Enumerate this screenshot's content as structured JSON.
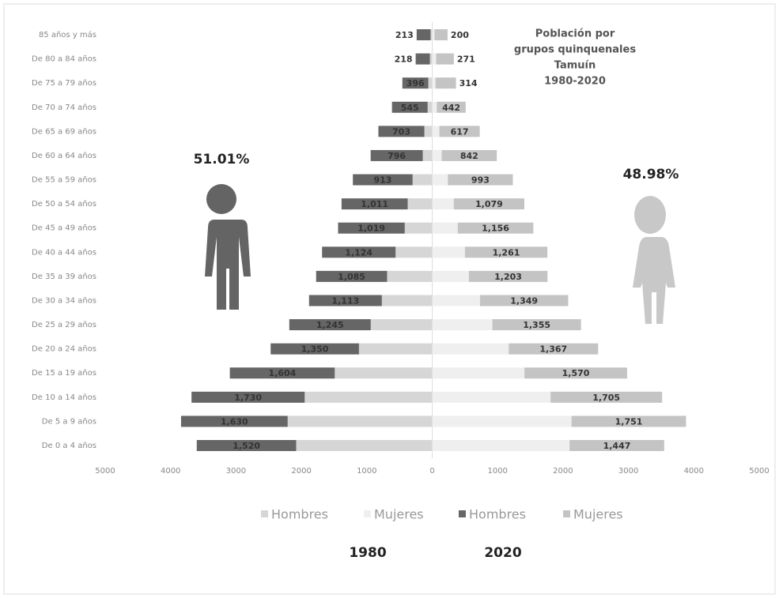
{
  "chart_data": {
    "type": "pyramid",
    "title_lines": [
      "Población por",
      "grupos quinquenales",
      "Tamuín",
      "1980-2020"
    ],
    "categories": [
      "De 0 a 4 años",
      "De 5 a 9 años",
      "De 10 a 14 años",
      "De 15 a 19 años",
      "De 20 a 24 años",
      "De 25 a 29 años",
      "De 30 a 34 años",
      "De 35 a 39 años",
      "De 40 a 44 años",
      "De 45 a 49 años",
      "De 50 a 54 años",
      "De 55 a 59 años",
      "De 60 a 64 años",
      "De 65 a 69 años",
      "De 70 a 74 años",
      "De 75 a 79 años",
      "De 80 a 84 años",
      "85 años y más"
    ],
    "series": [
      {
        "name": "Hombres",
        "color": "#d6d6d6",
        "values": [
          -2080,
          -2210,
          -1950,
          -1490,
          -1120,
          -940,
          -770,
          -690,
          -560,
          -420,
          -375,
          -300,
          -145,
          -120,
          -70,
          -60,
          -35,
          -25
        ]
      },
      {
        "name": "Mujeres",
        "color": "#efefef",
        "values": [
          2100,
          2130,
          1810,
          1410,
          1170,
          920,
          730,
          560,
          500,
          390,
          330,
          240,
          145,
          110,
          70,
          50,
          60,
          35
        ]
      },
      {
        "name": "Hombres",
        "color": "#666666",
        "values": [
          -1520,
          -1630,
          -1730,
          -1604,
          -1350,
          -1245,
          -1113,
          -1085,
          -1124,
          -1019,
          -1011,
          -913,
          -796,
          -703,
          -545,
          -396,
          -218,
          -213
        ],
        "value_labels": [
          "1,520",
          "1,630",
          "1,730",
          "1,604",
          "1,350",
          "1,245",
          "1,113",
          "1,085",
          "1,124",
          "1,019",
          "1,011",
          "913",
          "796",
          "703",
          "545",
          "396",
          "218",
          "213"
        ]
      },
      {
        "name": "Mujeres",
        "color": "#c4c4c4",
        "values": [
          1447,
          1751,
          1705,
          1570,
          1367,
          1355,
          1349,
          1203,
          1261,
          1156,
          1079,
          993,
          842,
          617,
          442,
          314,
          271,
          200
        ],
        "value_labels": [
          "1,447",
          "1,751",
          "1,705",
          "1,570",
          "1,367",
          "1,355",
          "1,349",
          "1,203",
          "1,261",
          "1,156",
          "1,079",
          "993",
          "842",
          "617",
          "442",
          "314",
          "271",
          "200"
        ]
      }
    ],
    "xlim": [
      -5000,
      5000
    ],
    "xticks": [
      {
        "value": -5000,
        "label": "5000"
      },
      {
        "value": -4000,
        "label": "4000"
      },
      {
        "value": -3000,
        "label": "3000"
      },
      {
        "value": -2000,
        "label": "2000"
      },
      {
        "value": -1000,
        "label": "1000"
      },
      0,
      1000,
      2000,
      3000,
      4000,
      5000
    ],
    "annotations": {
      "men_share": "51.01%",
      "women_share": "48.98%",
      "year_left": "1980",
      "year_right": "2020"
    }
  }
}
